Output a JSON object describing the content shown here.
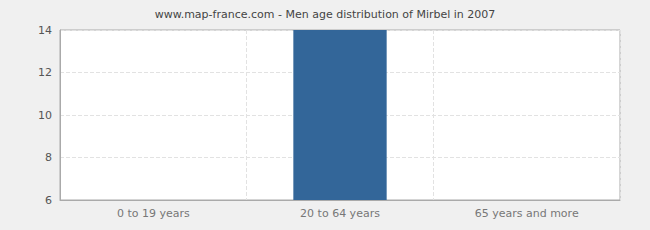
{
  "chart_data": {
    "type": "bar",
    "title": "www.map-france.com - Men age distribution of Mirbel in 2007",
    "categories": [
      "0 to 19 years",
      "20 to 64 years",
      "65 years and more"
    ],
    "values": [
      6,
      14,
      6
    ],
    "color": "#336699",
    "ylim": [
      6,
      14
    ],
    "yticks": [
      6,
      8,
      10,
      12,
      14
    ],
    "grid": true
  }
}
